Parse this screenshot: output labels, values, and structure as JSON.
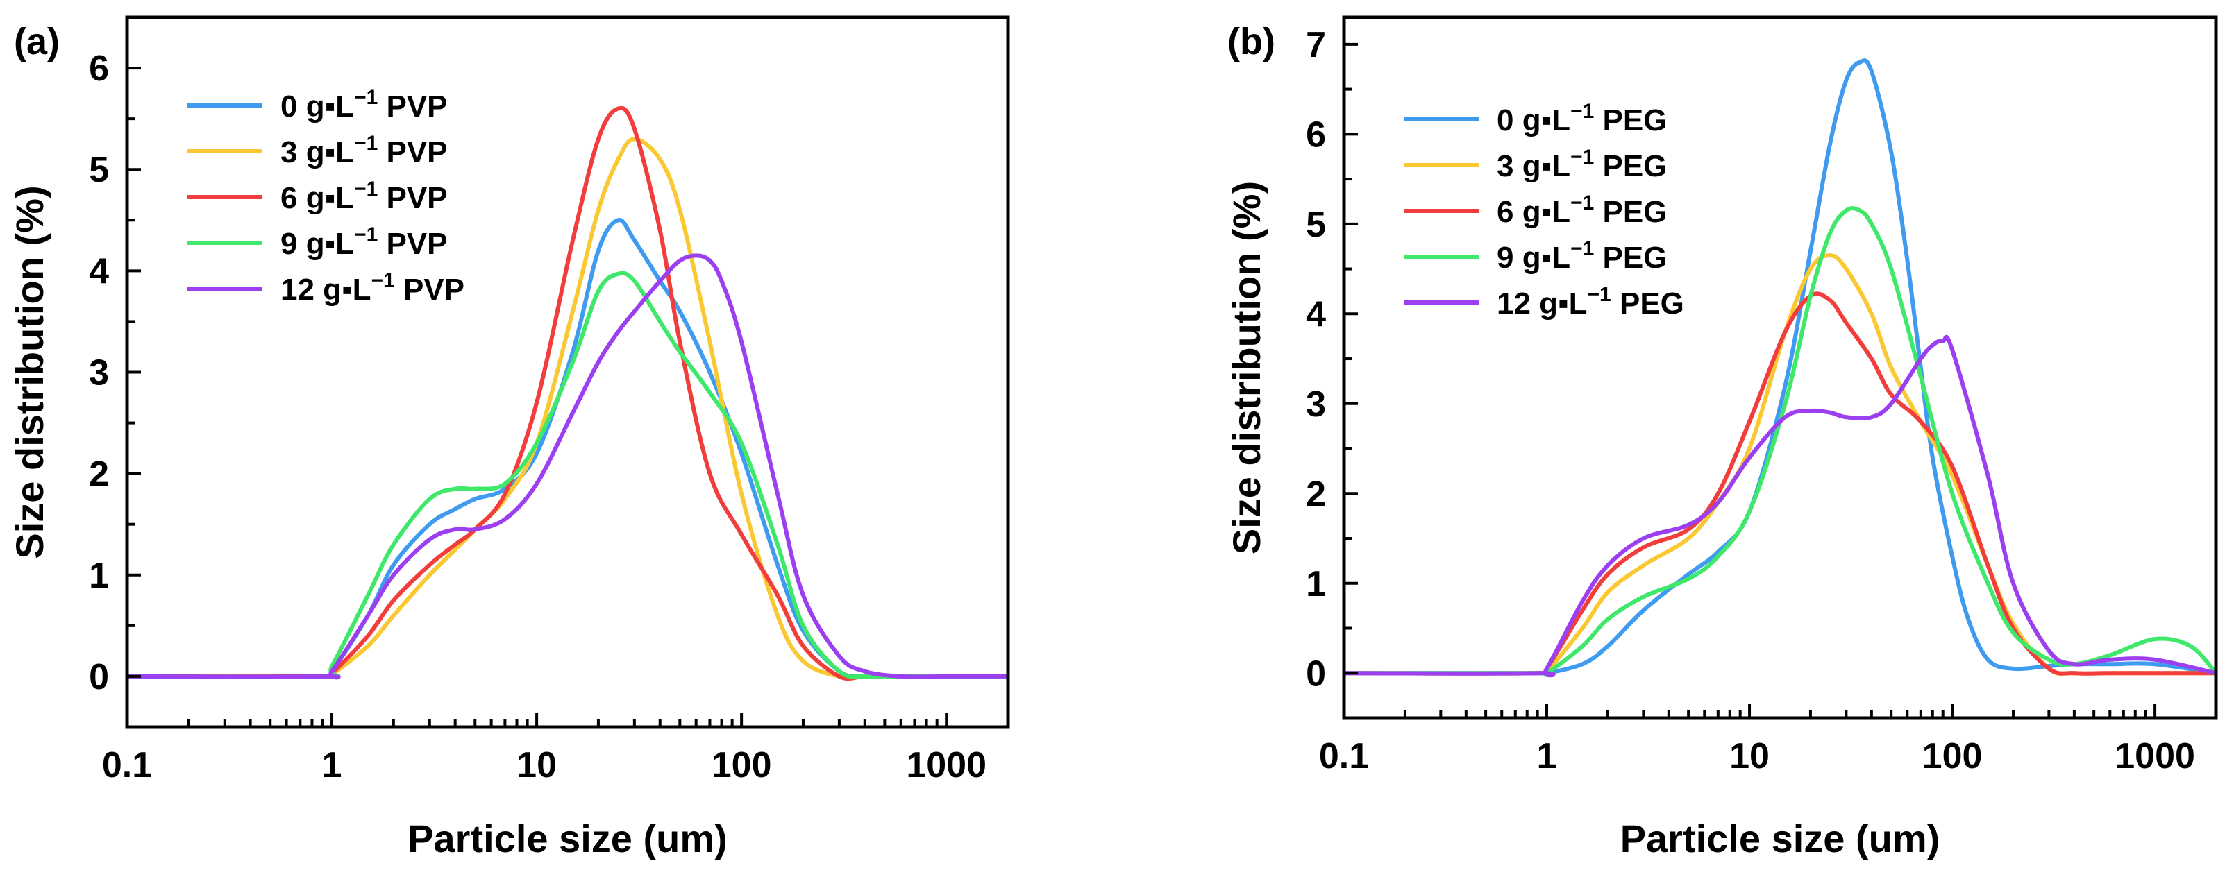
{
  "chart_data": [
    {
      "type": "line",
      "panel_label": "(a)",
      "xlabel": "Particle size (um)",
      "ylabel": "Size distribution (%)",
      "x_scale": "log",
      "xlim": [
        0.1,
        2000
      ],
      "ylim": [
        -0.5,
        6.5
      ],
      "x_ticks": [
        0.1,
        1,
        10,
        100,
        1000
      ],
      "x_tick_labels": [
        "0.1",
        "1",
        "10",
        "100",
        "1000"
      ],
      "y_ticks": [
        0,
        1,
        2,
        3,
        4,
        5,
        6
      ],
      "y_tick_labels": [
        "0",
        "1",
        "2",
        "3",
        "4",
        "5",
        "6"
      ],
      "legend_position": "top-left",
      "series": [
        {
          "name_prefix": "0  g▪L",
          "name_sup": "−1",
          "name_suffix": "PVP",
          "color": "#3f9bef",
          "x": [
            0.1,
            0.9,
            1,
            1.5,
            2,
            3,
            4,
            5,
            7,
            10,
            15,
            20,
            25,
            30,
            40,
            50,
            70,
            100,
            150,
            200,
            300,
            400,
            600,
            1000,
            2000
          ],
          "y": [
            0,
            0,
            0.05,
            0.6,
            1.1,
            1.5,
            1.65,
            1.75,
            1.85,
            2.2,
            3.2,
            4.2,
            4.5,
            4.3,
            3.9,
            3.6,
            3.0,
            2.2,
            1.1,
            0.45,
            0.05,
            0,
            0,
            0,
            0
          ]
        },
        {
          "name_prefix": "3  g▪L",
          "name_sup": "−1",
          "name_suffix": "PVP",
          "color": "#fac832",
          "x": [
            0.1,
            0.9,
            1,
            1.5,
            2,
            3,
            4,
            5,
            7,
            10,
            15,
            20,
            25,
            30,
            40,
            50,
            70,
            100,
            150,
            200,
            300,
            400,
            600,
            1000,
            2000
          ],
          "y": [
            0,
            0,
            0.02,
            0.3,
            0.6,
            1.0,
            1.25,
            1.45,
            1.75,
            2.3,
            3.6,
            4.6,
            5.1,
            5.3,
            5.1,
            4.6,
            3.3,
            1.8,
            0.6,
            0.15,
            0,
            0,
            0,
            0,
            0
          ]
        },
        {
          "name_prefix": "6  g▪L",
          "name_sup": "−1",
          "name_suffix": "PVP",
          "color": "#f23d3d",
          "x": [
            0.1,
            0.9,
            1,
            1.5,
            2,
            3,
            4,
            5,
            7,
            10,
            15,
            20,
            25,
            30,
            40,
            50,
            70,
            100,
            150,
            200,
            300,
            400,
            600,
            1000,
            2000
          ],
          "y": [
            0,
            0,
            0.03,
            0.4,
            0.75,
            1.1,
            1.3,
            1.45,
            1.8,
            2.7,
            4.3,
            5.3,
            5.6,
            5.4,
            4.4,
            3.3,
            2.0,
            1.4,
            0.8,
            0.3,
            0,
            0,
            0,
            0,
            0
          ]
        },
        {
          "name_prefix": "9  g▪L",
          "name_sup": "−1",
          "name_suffix": "PVP",
          "color": "#3fe86a",
          "x": [
            0.1,
            0.9,
            1,
            1.5,
            2,
            3,
            4,
            5,
            7,
            10,
            15,
            20,
            25,
            30,
            40,
            50,
            70,
            100,
            150,
            200,
            300,
            400,
            600,
            1000,
            2000
          ],
          "y": [
            0,
            0,
            0.1,
            0.8,
            1.3,
            1.75,
            1.85,
            1.85,
            1.9,
            2.3,
            3.1,
            3.8,
            3.97,
            3.9,
            3.5,
            3.2,
            2.8,
            2.3,
            1.3,
            0.5,
            0.05,
            0,
            0,
            0,
            0
          ]
        },
        {
          "name_prefix": "12 g▪L",
          "name_sup": "−1",
          "name_suffix": "PVP",
          "color": "#9b3ff0",
          "x": [
            0.1,
            0.9,
            1,
            1.5,
            2,
            3,
            4,
            5,
            7,
            10,
            15,
            20,
            25,
            30,
            40,
            50,
            60,
            70,
            80,
            100,
            150,
            200,
            300,
            400,
            600,
            1000,
            2000
          ],
          "y": [
            0,
            0,
            0.05,
            0.6,
            1.0,
            1.35,
            1.45,
            1.45,
            1.55,
            1.9,
            2.6,
            3.1,
            3.4,
            3.6,
            3.9,
            4.1,
            4.15,
            4.1,
            3.9,
            3.3,
            1.8,
            0.8,
            0.2,
            0.05,
            0,
            0,
            0
          ]
        }
      ]
    },
    {
      "type": "line",
      "panel_label": "(b)",
      "xlabel": "Particle size (um)",
      "ylabel": "Size distribution (%)",
      "x_scale": "log",
      "xlim": [
        0.1,
        2000
      ],
      "ylim": [
        -0.5,
        7.3
      ],
      "x_ticks": [
        0.1,
        1,
        10,
        100,
        1000
      ],
      "x_tick_labels": [
        "0.1",
        "1",
        "10",
        "100",
        "1000"
      ],
      "y_ticks": [
        0,
        1,
        2,
        3,
        4,
        5,
        6,
        7
      ],
      "y_tick_labels": [
        "0",
        "1",
        "2",
        "3",
        "4",
        "5",
        "6",
        "7"
      ],
      "legend_position": "top-left",
      "series": [
        {
          "name_prefix": "0  g▪L",
          "name_sup": "−1",
          "name_suffix": "PEG",
          "color": "#3f9bef",
          "x": [
            0.1,
            0.9,
            1,
            1.5,
            2,
            3,
            5,
            7,
            10,
            15,
            20,
            25,
            30,
            35,
            40,
            50,
            60,
            70,
            80,
            100,
            120,
            150,
            200,
            300,
            400,
            600,
            1000,
            2000
          ],
          "y": [
            0,
            0,
            0,
            0.1,
            0.3,
            0.7,
            1.1,
            1.35,
            1.8,
            3.2,
            4.7,
            5.9,
            6.6,
            6.8,
            6.7,
            5.8,
            4.6,
            3.4,
            2.4,
            1.3,
            0.6,
            0.15,
            0.05,
            0.08,
            0.1,
            0.1,
            0.1,
            0
          ]
        },
        {
          "name_prefix": "3  g▪L",
          "name_sup": "−1",
          "name_suffix": "PEG",
          "color": "#fac832",
          "x": [
            0.1,
            0.9,
            1,
            1.5,
            2,
            3,
            5,
            7,
            10,
            15,
            20,
            25,
            30,
            40,
            50,
            70,
            100,
            150,
            200,
            300,
            400,
            600,
            1000,
            2000
          ],
          "y": [
            0,
            0,
            0.02,
            0.5,
            0.9,
            1.2,
            1.5,
            1.9,
            2.5,
            3.8,
            4.5,
            4.65,
            4.5,
            4.0,
            3.4,
            2.8,
            2.2,
            1.2,
            0.55,
            0.05,
            0,
            0,
            0,
            0
          ]
        },
        {
          "name_prefix": "6  g▪L",
          "name_sup": "−1",
          "name_suffix": "PEG",
          "color": "#f23d3d",
          "x": [
            0.1,
            0.9,
            1,
            1.5,
            2,
            3,
            5,
            7,
            10,
            15,
            20,
            25,
            30,
            40,
            50,
            70,
            100,
            150,
            200,
            300,
            400,
            600,
            1000,
            2000
          ],
          "y": [
            0,
            0,
            0.05,
            0.7,
            1.1,
            1.4,
            1.6,
            2.0,
            2.8,
            3.8,
            4.2,
            4.15,
            3.9,
            3.5,
            3.1,
            2.8,
            2.3,
            1.2,
            0.5,
            0.05,
            0,
            0,
            0,
            0
          ]
        },
        {
          "name_prefix": "9  g▪L",
          "name_sup": "−1",
          "name_suffix": "PEG",
          "color": "#3fe86a",
          "x": [
            0.1,
            0.9,
            1,
            1.5,
            2,
            3,
            5,
            7,
            10,
            15,
            20,
            25,
            30,
            35,
            40,
            50,
            70,
            100,
            150,
            200,
            300,
            400,
            600,
            1000,
            1500,
            2000
          ],
          "y": [
            0,
            0,
            0,
            0.3,
            0.6,
            0.85,
            1.05,
            1.3,
            1.8,
            3.0,
            4.2,
            4.9,
            5.15,
            5.15,
            5.0,
            4.5,
            3.3,
            2.0,
            1.0,
            0.45,
            0.15,
            0.1,
            0.2,
            0.38,
            0.3,
            0
          ]
        },
        {
          "name_prefix": "12 g▪L",
          "name_sup": "−1",
          "name_suffix": "PEG",
          "color": "#9b3ff0",
          "x": [
            0.1,
            0.9,
            1,
            1.5,
            2,
            3,
            5,
            7,
            10,
            15,
            20,
            25,
            30,
            40,
            50,
            70,
            80,
            90,
            100,
            150,
            200,
            300,
            400,
            600,
            1000,
            2000
          ],
          "y": [
            0,
            0,
            0.05,
            0.8,
            1.2,
            1.5,
            1.65,
            1.9,
            2.4,
            2.85,
            2.92,
            2.9,
            2.85,
            2.85,
            3.0,
            3.5,
            3.65,
            3.7,
            3.6,
            2.2,
            1.0,
            0.25,
            0.1,
            0.15,
            0.15,
            0
          ]
        }
      ]
    }
  ]
}
